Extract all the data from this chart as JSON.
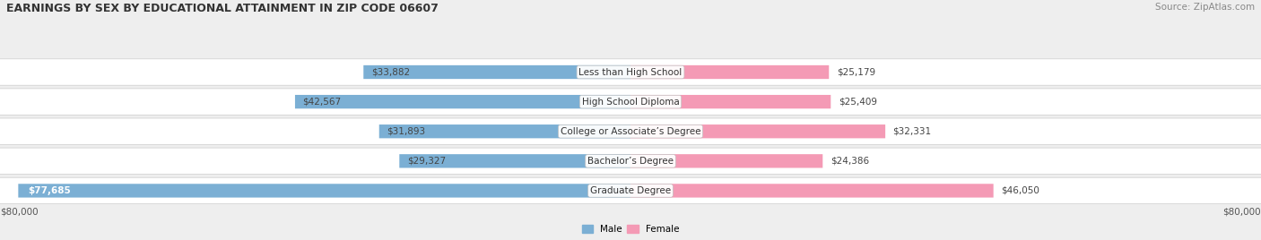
{
  "title": "EARNINGS BY SEX BY EDUCATIONAL ATTAINMENT IN ZIP CODE 06607",
  "source": "Source: ZipAtlas.com",
  "categories": [
    "Less than High School",
    "High School Diploma",
    "College or Associate’s Degree",
    "Bachelor’s Degree",
    "Graduate Degree"
  ],
  "male_values": [
    33882,
    42567,
    31893,
    29327,
    77685
  ],
  "female_values": [
    25179,
    25409,
    32331,
    24386,
    46050
  ],
  "male_color": "#7bafd4",
  "female_color": "#f49ab5",
  "male_label": "Male",
  "female_label": "Female",
  "max_value": 80000,
  "axis_label": "$80,000",
  "bg_color": "#eeeeee",
  "title_fontsize": 9.0,
  "source_fontsize": 7.5,
  "value_fontsize": 7.5,
  "cat_fontsize": 7.5
}
